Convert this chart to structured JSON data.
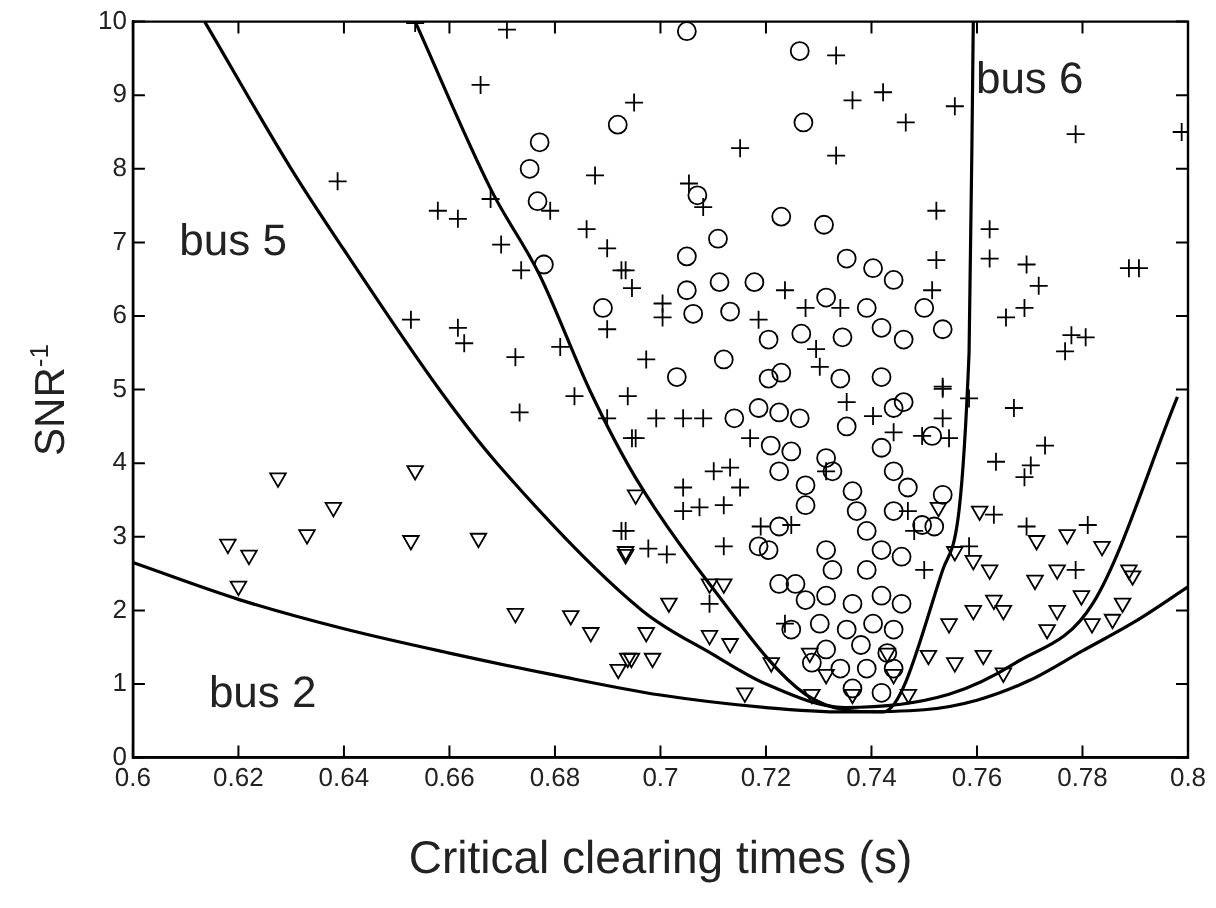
{
  "chart_data": {
    "type": "scatter",
    "xlabel": "Critical clearing times (s)",
    "ylabel": "SNR$^{-1}$",
    "xlim": [
      0.6,
      0.8
    ],
    "xticks": [
      0.6,
      0.62,
      0.64,
      0.66,
      0.68,
      0.7,
      0.72,
      0.74,
      0.76,
      0.78,
      0.8
    ],
    "ylim": [
      0,
      10
    ],
    "yticks": [
      0,
      1,
      2,
      3,
      4,
      5,
      6,
      7,
      8,
      9,
      10
    ],
    "grid": false,
    "legend": false,
    "annotations": [
      "bus 5",
      "bus 2",
      "bus 6"
    ],
    "series": [
      {
        "marker": "triangle",
        "color": "#000000",
        "x": [
          0.618,
          0.622,
          0.62,
          0.6275,
          0.633,
          0.638,
          0.6527,
          0.6535,
          0.6655,
          0.6725,
          0.683,
          0.6868,
          0.692,
          0.6945,
          0.6934,
          0.6953,
          0.6934,
          0.7016,
          0.7093,
          0.712,
          0.7093,
          0.7132,
          0.6973,
          0.6985,
          0.6938,
          0.716,
          0.721,
          0.7287,
          0.7364,
          0.747,
          0.7508,
          0.7558,
          0.7612,
          0.765,
          0.7547,
          0.7593,
          0.7632,
          0.765,
          0.7558,
          0.7593,
          0.7624,
          0.7527,
          0.7605,
          0.771,
          0.7713,
          0.7771,
          0.7837,
          0.7752,
          0.7798,
          0.7752,
          0.7733,
          0.7818,
          0.7857,
          0.7876,
          0.7888,
          0.7895,
          0.7283,
          0.743,
          0.7442,
          0.7314
        ],
        "values": [
          2.9,
          2.75,
          2.33,
          3.8,
          3.03,
          3.4,
          2.95,
          3.9,
          2.98,
          1.96,
          1.93,
          1.7,
          1.2,
          1.35,
          2.8,
          3.57,
          2.76,
          2.1,
          2.36,
          2.36,
          1.66,
          1.55,
          1.7,
          1.35,
          1.35,
          0.88,
          1.29,
          0.86,
          0.86,
          0.86,
          1.39,
          1.29,
          1.39,
          1.15,
          1.82,
          2.0,
          2.14,
          2.0,
          2.8,
          2.68,
          2.55,
          3.4,
          3.35,
          2.41,
          2.95,
          3.03,
          2.87,
          2.55,
          2.2,
          2.0,
          1.74,
          1.82,
          1.88,
          2.1,
          2.55,
          2.47,
          1.42,
          1.42,
          1.13,
          1.13
        ]
      },
      {
        "marker": "circle",
        "color": "#000000",
        "x": [
          0.6771,
          0.6752,
          0.6767,
          0.6779,
          0.6891,
          0.6919,
          0.705,
          0.7264,
          0.7271,
          0.707,
          0.7109,
          0.705,
          0.7229,
          0.731,
          0.7353,
          0.7403,
          0.7442,
          0.75,
          0.7535,
          0.705,
          0.7112,
          0.7178,
          0.7062,
          0.7132,
          0.7205,
          0.7267,
          0.7345,
          0.7391,
          0.7314,
          0.7419,
          0.7461,
          0.7031,
          0.712,
          0.7205,
          0.7229,
          0.7419,
          0.7341,
          0.7225,
          0.7186,
          0.714,
          0.7264,
          0.7353,
          0.7442,
          0.7461,
          0.7515,
          0.7209,
          0.7248,
          0.7314,
          0.7419,
          0.7442,
          0.7469,
          0.7535,
          0.7519,
          0.7496,
          0.7225,
          0.7275,
          0.7275,
          0.7372,
          0.7442,
          0.7225,
          0.7186,
          0.7205,
          0.7225,
          0.7256,
          0.7275,
          0.7314,
          0.7326,
          0.7391,
          0.7419,
          0.7457,
          0.7314,
          0.7364,
          0.7419,
          0.7457,
          0.7302,
          0.7353,
          0.7403,
          0.7442,
          0.7314,
          0.738,
          0.743,
          0.7341,
          0.7391,
          0.7442,
          0.7364,
          0.7419,
          0.7287,
          0.7248,
          0.7391,
          0.7364,
          0.7326
        ],
        "values": [
          8.36,
          8.0,
          7.56,
          6.7,
          6.11,
          8.6,
          9.87,
          9.6,
          8.63,
          7.64,
          7.05,
          6.81,
          7.35,
          7.24,
          6.78,
          6.65,
          6.49,
          6.11,
          5.82,
          6.35,
          6.46,
          6.46,
          6.03,
          6.06,
          5.68,
          5.76,
          5.71,
          6.11,
          6.25,
          5.84,
          5.68,
          5.17,
          5.41,
          5.15,
          5.23,
          5.17,
          5.15,
          4.69,
          4.75,
          4.61,
          4.61,
          4.5,
          4.75,
          4.83,
          4.37,
          4.24,
          4.16,
          4.07,
          4.21,
          3.89,
          3.67,
          3.57,
          3.14,
          3.16,
          3.89,
          3.7,
          3.43,
          3.35,
          3.35,
          3.14,
          2.87,
          2.82,
          2.36,
          2.36,
          2.14,
          2.82,
          2.55,
          2.55,
          2.82,
          2.73,
          2.2,
          2.09,
          2.2,
          2.09,
          1.82,
          1.74,
          1.82,
          1.74,
          1.47,
          1.53,
          1.42,
          1.21,
          1.21,
          1.21,
          0.94,
          0.88,
          1.29,
          1.74,
          3.08,
          3.62,
          3.89
        ]
      },
      {
        "marker": "cross",
        "color": "#000000",
        "x": [
          0.6535,
          0.6709,
          0.6659,
          0.6388,
          0.6578,
          0.6616,
          0.6678,
          0.6698,
          0.6736,
          0.6791,
          0.6876,
          0.686,
          0.6899,
          0.6934,
          0.6946,
          0.6527,
          0.6616,
          0.6628,
          0.6725,
          0.681,
          0.6899,
          0.695,
          0.6733,
          0.6837,
          0.6899,
          0.6946,
          0.6926,
          0.7333,
          0.7364,
          0.7422,
          0.7558,
          0.7465,
          0.7151,
          0.7333,
          0.7787,
          0.7988,
          0.7054,
          0.7081,
          0.7523,
          0.7624,
          0.7624,
          0.7694,
          0.7717,
          0.7888,
          0.7907,
          0.7655,
          0.769,
          0.7779,
          0.7806,
          0.7767,
          0.7523,
          0.7515,
          0.7236,
          0.7275,
          0.7341,
          0.7186,
          0.7004,
          0.7004,
          0.6926,
          0.6973,
          0.7295,
          0.7535,
          0.6938,
          0.6992,
          0.7043,
          0.7081,
          0.6953,
          0.717,
          0.7101,
          0.7132,
          0.7043,
          0.7151,
          0.7043,
          0.7074,
          0.712,
          0.712,
          0.6977,
          0.7012,
          0.6934,
          0.719,
          0.7535,
          0.7585,
          0.767,
          0.7535,
          0.7496,
          0.7547,
          0.7729,
          0.7702,
          0.769,
          0.7636,
          0.7632,
          0.7694,
          0.781,
          0.7787,
          0.75,
          0.7481,
          0.7585,
          0.7469,
          0.7403,
          0.7442,
          0.7353,
          0.7302,
          0.7314,
          0.7248,
          0.7236,
          0.7093
        ],
        "values": [
          9.98,
          9.89,
          9.14,
          7.83,
          7.43,
          7.32,
          7.59,
          6.97,
          6.62,
          7.43,
          7.91,
          7.18,
          6.92,
          6.62,
          6.38,
          5.95,
          5.84,
          5.63,
          5.44,
          5.58,
          5.82,
          8.9,
          4.69,
          4.91,
          4.61,
          4.34,
          3.08,
          9.54,
          8.93,
          9.04,
          8.85,
          8.63,
          8.28,
          8.18,
          8.47,
          8.5,
          7.8,
          7.48,
          7.43,
          7.18,
          6.78,
          6.7,
          6.41,
          6.65,
          6.65,
          5.98,
          6.11,
          5.74,
          5.71,
          5.52,
          6.76,
          6.35,
          6.35,
          6.11,
          6.11,
          5.95,
          6.17,
          5.98,
          6.62,
          5.41,
          5.55,
          5.04,
          4.91,
          4.61,
          4.61,
          4.61,
          4.34,
          4.34,
          3.89,
          3.94,
          3.67,
          3.67,
          3.35,
          3.4,
          3.43,
          2.87,
          2.84,
          2.76,
          3.08,
          3.14,
          5.01,
          4.88,
          4.75,
          4.61,
          4.37,
          4.34,
          4.24,
          3.97,
          3.81,
          4.02,
          3.3,
          3.14,
          3.16,
          2.55,
          2.55,
          3.08,
          2.87,
          3.35,
          4.64,
          4.42,
          4.83,
          5.31,
          3.89,
          3.16,
          1.82,
          2.09
        ]
      },
      {
        "type": "line",
        "marker": "none",
        "color": "#000000",
        "x": [
          0.6,
          0.62,
          0.64,
          0.66,
          0.68,
          0.7,
          0.72,
          0.735,
          0.75,
          0.76,
          0.77,
          0.78,
          0.79,
          0.8
        ],
        "values": [
          2.65,
          2.15,
          1.75,
          1.42,
          1.12,
          0.85,
          0.68,
          0.62,
          0.65,
          0.78,
          1.05,
          1.45,
          1.85,
          2.32
        ]
      },
      {
        "type": "line",
        "marker": "none",
        "color": "#000000",
        "x": [
          0.6136,
          0.63,
          0.64,
          0.6585,
          0.669,
          0.6965,
          0.71,
          0.72,
          0.735,
          0.7547,
          0.7674,
          0.782,
          0.798
        ],
        "values": [
          10,
          8.0,
          6.9,
          4.96,
          4.0,
          2.0,
          1.4,
          1.0,
          0.68,
          0.86,
          1.29,
          2.1,
          4.9
        ]
      },
      {
        "type": "line",
        "marker": "none",
        "color": "#000000",
        "x": [
          0.6535,
          0.668,
          0.677,
          0.6868,
          0.6953,
          0.7093,
          0.7275,
          0.7422,
          0.7535,
          0.7585,
          0.7593
        ],
        "values": [
          10,
          7.7,
          6.57,
          4.96,
          3.8,
          2.36,
          0.86,
          0.62,
          2.55,
          5.5,
          10
        ]
      }
    ]
  }
}
